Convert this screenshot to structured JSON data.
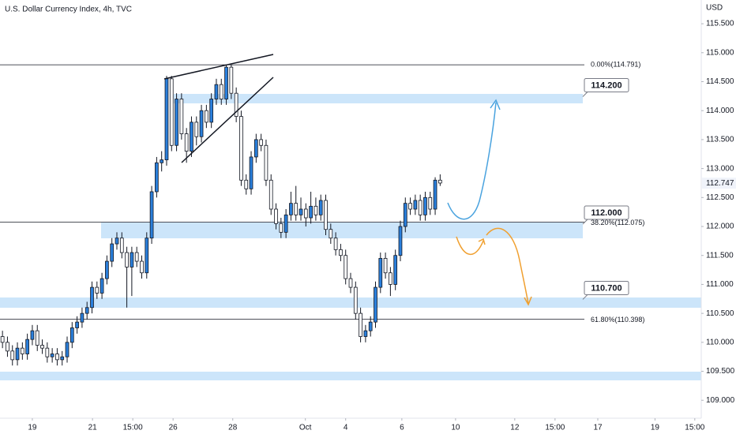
{
  "chart_data": {
    "type": "candlestick",
    "title": "U.S. Dollar Currency Index, 4h, TVC",
    "y_axis_label": "USD",
    "up_color": "#2a7fdb",
    "down_color": "#ffffff",
    "outline_color": "#131722",
    "xlim": [
      0,
      141
    ],
    "xticks": [
      {
        "value": 6.5,
        "label": "19"
      },
      {
        "value": 18.6,
        "label": "21"
      },
      {
        "value": 26.7,
        "label": "15:00"
      },
      {
        "value": 34.8,
        "label": "26"
      },
      {
        "value": 46.8,
        "label": "28"
      },
      {
        "value": 61.4,
        "label": "Oct"
      },
      {
        "value": 69.5,
        "label": "4"
      },
      {
        "value": 80.8,
        "label": "6"
      },
      {
        "value": 91.6,
        "label": "10"
      },
      {
        "value": 103.5,
        "label": "12"
      },
      {
        "value": 111.6,
        "label": "15:00"
      },
      {
        "value": 120.2,
        "label": "17"
      },
      {
        "value": 131.7,
        "label": "19"
      },
      {
        "value": 139.7,
        "label": "15:00"
      }
    ],
    "ylim": [
      108.69,
      115.91
    ],
    "yticks": [
      {
        "value": 109.0,
        "label": "109.000"
      },
      {
        "value": 109.5,
        "label": "109.500"
      },
      {
        "value": 110.0,
        "label": "110.000"
      },
      {
        "value": 110.5,
        "label": "110.500"
      },
      {
        "value": 111.0,
        "label": "111.000"
      },
      {
        "value": 111.5,
        "label": "111.500"
      },
      {
        "value": 112.0,
        "label": "112.000"
      },
      {
        "value": 112.5,
        "label": "112.500"
      },
      {
        "value": 113.0,
        "label": "113.000"
      },
      {
        "value": 113.5,
        "label": "113.500"
      },
      {
        "value": 114.0,
        "label": "114.000"
      },
      {
        "value": 114.5,
        "label": "114.500"
      },
      {
        "value": 115.0,
        "label": "115.000"
      },
      {
        "value": 115.5,
        "label": "115.500"
      }
    ],
    "last_price": {
      "value": 112.747,
      "label": "112.747"
    },
    "fib_levels": [
      {
        "value": 114.791,
        "label": "0.00%(114.791)"
      },
      {
        "value": 112.075,
        "label": "38.20%(112.075)"
      },
      {
        "value": 110.398,
        "label": "61.80%(110.398)"
      }
    ],
    "callouts": [
      {
        "value": 114.2,
        "label": "114.200"
      },
      {
        "value": 112.0,
        "label": "112.000"
      },
      {
        "value": 110.7,
        "label": "110.700"
      }
    ],
    "open": [
      110.1,
      110.0,
      109.85,
      109.7,
      109.9,
      109.8,
      110.05,
      110.2,
      109.95,
      109.9,
      109.75,
      109.8,
      109.7,
      109.75,
      110.0,
      110.25,
      110.35,
      110.5,
      110.6,
      110.95,
      110.85,
      111.1,
      111.4,
      111.7,
      111.8,
      111.55,
      111.3,
      111.55,
      111.4,
      111.2,
      111.8,
      112.6,
      113.1,
      113.15,
      114.55,
      113.4,
      114.2,
      113.6,
      113.3,
      113.8,
      113.55,
      114.0,
      113.8,
      114.2,
      114.45,
      114.2,
      114.75,
      114.3,
      113.9,
      112.8,
      112.65,
      113.2,
      113.5,
      113.4,
      112.8,
      112.3,
      112.05,
      111.9,
      112.2,
      112.4,
      112.2,
      112.3,
      112.15,
      112.35,
      112.2,
      112.45,
      111.95,
      111.8,
      111.6,
      111.5,
      111.1,
      110.95,
      110.5,
      110.1,
      110.2,
      110.35,
      110.95,
      111.45,
      111.2,
      111.0,
      111.5,
      112.0,
      112.4,
      112.3,
      112.45,
      112.2,
      112.5,
      112.3,
      112.8
    ],
    "high": [
      110.2,
      110.1,
      109.95,
      110.0,
      110.0,
      110.15,
      110.3,
      110.3,
      110.05,
      110.0,
      109.9,
      109.9,
      109.85,
      110.1,
      110.35,
      110.45,
      110.6,
      110.7,
      111.05,
      111.05,
      111.2,
      111.5,
      111.8,
      111.9,
      111.9,
      111.65,
      111.65,
      111.65,
      111.5,
      111.9,
      112.7,
      113.2,
      113.3,
      114.6,
      114.6,
      114.3,
      114.3,
      113.7,
      113.9,
      113.9,
      114.1,
      114.1,
      114.3,
      114.55,
      114.55,
      114.79,
      114.79,
      114.4,
      114.0,
      112.9,
      113.3,
      113.6,
      113.6,
      113.5,
      112.9,
      112.4,
      112.15,
      112.3,
      112.6,
      112.7,
      112.5,
      112.4,
      112.6,
      112.5,
      112.55,
      112.55,
      112.05,
      111.9,
      111.7,
      111.6,
      111.2,
      111.05,
      110.6,
      110.3,
      110.45,
      111.05,
      111.55,
      111.55,
      111.3,
      111.6,
      112.1,
      112.5,
      112.5,
      112.55,
      112.55,
      112.6,
      112.6,
      112.85,
      112.9
    ],
    "low": [
      109.9,
      109.75,
      109.6,
      109.6,
      109.7,
      109.7,
      109.95,
      109.85,
      109.8,
      109.65,
      109.65,
      109.6,
      109.6,
      109.65,
      109.9,
      110.15,
      110.25,
      110.4,
      110.5,
      110.75,
      110.75,
      111.0,
      111.3,
      111.6,
      111.45,
      110.6,
      110.8,
      111.3,
      111.1,
      111.1,
      111.7,
      112.5,
      112.95,
      113.05,
      113.3,
      113.3,
      113.5,
      113.1,
      113.2,
      113.4,
      113.45,
      113.7,
      113.7,
      114.1,
      114.1,
      114.1,
      114.2,
      113.8,
      112.7,
      112.55,
      112.55,
      113.1,
      113.3,
      112.7,
      112.2,
      111.95,
      111.8,
      111.8,
      112.1,
      112.1,
      112.1,
      112.0,
      112.05,
      112.1,
      112.1,
      111.85,
      111.7,
      111.5,
      111.4,
      111.0,
      110.85,
      110.4,
      110.0,
      110.0,
      110.1,
      110.25,
      110.85,
      111.1,
      110.8,
      110.9,
      111.4,
      111.9,
      112.2,
      112.2,
      112.1,
      112.1,
      112.2,
      112.2,
      112.7
    ],
    "close": [
      110.0,
      109.85,
      109.7,
      109.9,
      109.8,
      110.05,
      110.2,
      109.95,
      109.9,
      109.75,
      109.8,
      109.7,
      109.75,
      110.0,
      110.25,
      110.35,
      110.5,
      110.6,
      110.95,
      110.85,
      111.1,
      111.4,
      111.7,
      111.8,
      111.55,
      111.3,
      111.55,
      111.4,
      111.2,
      111.8,
      112.6,
      113.1,
      113.15,
      114.55,
      113.4,
      114.2,
      113.6,
      113.3,
      113.8,
      113.55,
      114.0,
      113.8,
      114.2,
      114.45,
      114.2,
      114.75,
      114.3,
      113.9,
      112.8,
      112.65,
      113.2,
      113.5,
      113.4,
      112.8,
      112.3,
      112.05,
      111.9,
      112.2,
      112.4,
      112.2,
      112.3,
      112.15,
      112.35,
      112.2,
      112.45,
      111.95,
      111.8,
      111.6,
      111.5,
      111.1,
      110.95,
      110.5,
      110.1,
      110.2,
      110.35,
      110.95,
      111.45,
      111.2,
      111.0,
      111.5,
      112.0,
      112.4,
      112.3,
      112.45,
      112.2,
      112.5,
      112.3,
      112.8,
      112.75
    ]
  }
}
